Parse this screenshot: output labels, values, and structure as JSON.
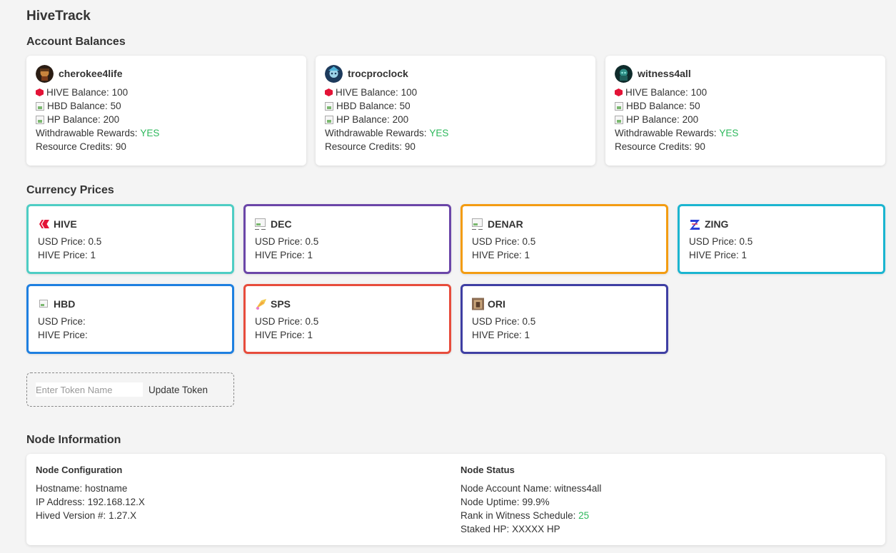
{
  "app_title": "HiveTrack",
  "sections": {
    "balances": "Account Balances",
    "prices": "Currency Prices",
    "node": "Node Information"
  },
  "labels": {
    "hive_balance": "HIVE Balance:",
    "hbd_balance": "HBD Balance:",
    "hp_balance": "HP Balance:",
    "withdrawable": "Withdrawable Rewards:",
    "rc": "Resource Credits:",
    "usd_price": "USD Price:",
    "hive_price": "HIVE Price:"
  },
  "accounts": [
    {
      "name": "cherokee4life",
      "hive": "100",
      "hbd": "50",
      "hp": "200",
      "withdrawable": "YES",
      "rc": "90"
    },
    {
      "name": "trocproclock",
      "hive": "100",
      "hbd": "50",
      "hp": "200",
      "withdrawable": "YES",
      "rc": "90"
    },
    {
      "name": "witness4all",
      "hive": "100",
      "hbd": "50",
      "hp": "200",
      "withdrawable": "YES",
      "rc": "90"
    }
  ],
  "tokens": [
    {
      "name": "HIVE",
      "usd": "0.5",
      "hive": "1",
      "color": "#4ecdc4",
      "icon": "hive-logo-icon"
    },
    {
      "name": "DEC",
      "usd": "0.5",
      "hive": "1",
      "color": "#6b46a8",
      "icon": "broken-image-icon"
    },
    {
      "name": "DENAR",
      "usd": "0.5",
      "hive": "1",
      "color": "#f39c12",
      "icon": "broken-image-icon"
    },
    {
      "name": "ZING",
      "usd": "0.5",
      "hive": "1",
      "color": "#1bb5d0",
      "icon": "zing-logo-icon"
    },
    {
      "name": "HBD",
      "usd": "",
      "hive": "",
      "color": "#1e7fe0",
      "icon": "broken-image-icon"
    },
    {
      "name": "SPS",
      "usd": "0.5",
      "hive": "1",
      "color": "#e74c3c",
      "icon": "sps-logo-icon"
    },
    {
      "name": "ORI",
      "usd": "0.5",
      "hive": "1",
      "color": "#3f3fa3",
      "icon": "ori-logo-icon"
    }
  ],
  "token_form": {
    "placeholder": "Enter Token Name",
    "button": "Update Token"
  },
  "node": {
    "config_title": "Node Configuration",
    "hostname_label": "Hostname:",
    "hostname": "hostname",
    "ip_label": "IP Address:",
    "ip": "192.168.12.X",
    "version_label": "Hived Version #:",
    "version": "1.27.X",
    "status_title": "Node Status",
    "account_label": "Node Account Name:",
    "account": "witness4all",
    "uptime_label": "Node Uptime:",
    "uptime": "99.9%",
    "rank_label": "Rank in Witness Schedule:",
    "rank": "25",
    "staked_label": "Staked HP:",
    "staked": "XXXXX HP"
  },
  "colors": {
    "yes": "#2eb85c",
    "hive_red": "#e31337",
    "background": "#f4f4f4"
  }
}
